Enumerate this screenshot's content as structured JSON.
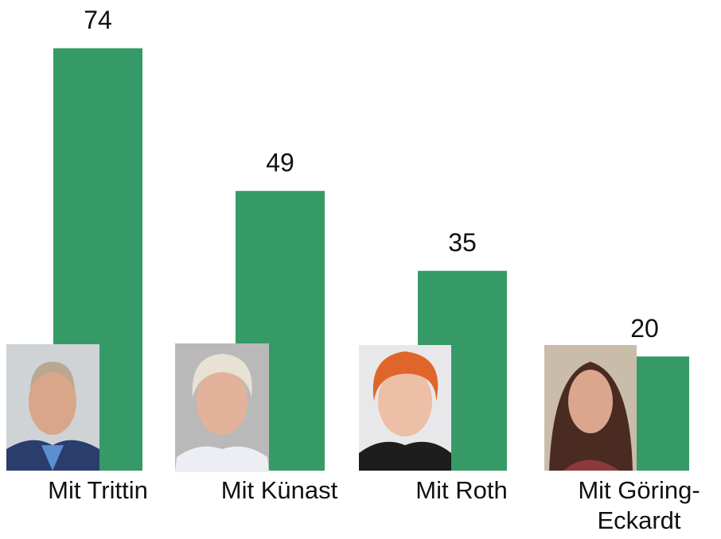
{
  "chart_data": {
    "type": "bar",
    "categories": [
      "Mit Trittin",
      "Mit Künast",
      "Mit Roth",
      "Mit Göring-Eckardt"
    ],
    "values": [
      74,
      49,
      35,
      20
    ],
    "color": "#359a66"
  }
}
